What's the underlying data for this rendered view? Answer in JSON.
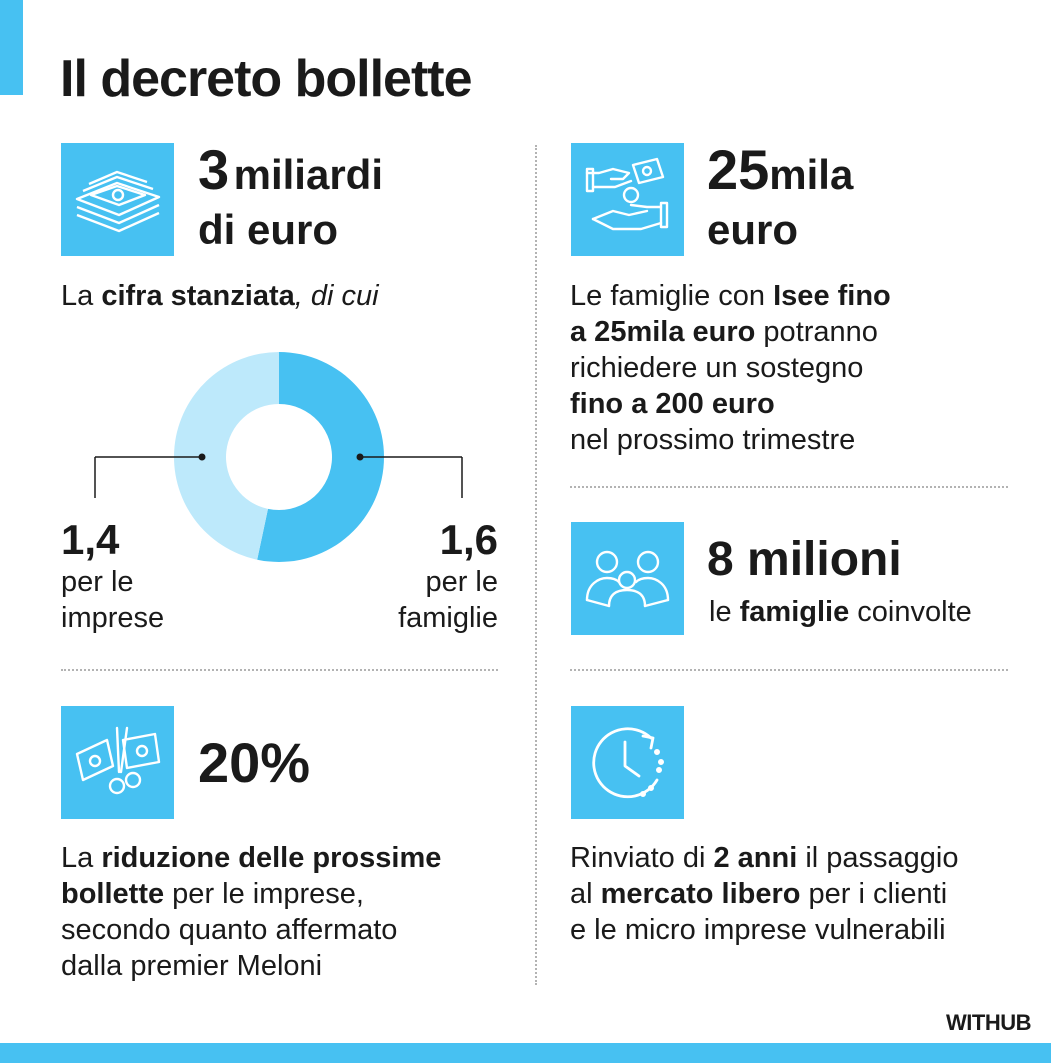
{
  "title": "Il decreto bollette",
  "blocks": {
    "funds": {
      "big_number": "3",
      "big_unit": "miliardi",
      "big_line2": "di euro",
      "desc_prefix": "La ",
      "desc_bold": "cifra stanziata",
      "desc_italic": ", di cui",
      "icon": "banknotes-icon"
    },
    "isee": {
      "big_number": "25",
      "big_unit": "mila",
      "big_line2": "euro",
      "desc_p1": "Le famiglie con ",
      "desc_b1": "Isee fino",
      "desc_b2": "a 25mila euro",
      "desc_p2": " potranno",
      "desc_p3": "richiedere un sostegno",
      "desc_b3": "fino a 200 euro",
      "desc_p4": "nel prossimo trimestre",
      "icon": "hands-money-icon"
    },
    "families": {
      "big_number": "8 milioni",
      "desc_prefix": "le ",
      "desc_bold": "famiglie",
      "desc_suffix": " coinvolte",
      "icon": "family-icon"
    },
    "reduction": {
      "big_number": "20%",
      "desc_p1": "La ",
      "desc_b1": "riduzione delle prossime",
      "desc_b2": "bollette",
      "desc_p2": " per le imprese,",
      "desc_p3": "secondo quanto affermato",
      "desc_p4": "dalla premier Meloni",
      "icon": "scissors-bill-icon"
    },
    "deferral": {
      "desc_p1": "Rinviato di ",
      "desc_b1": "2 anni",
      "desc_p2": " il passaggio",
      "desc_p3": "al ",
      "desc_b2": "mercato libero",
      "desc_p4": " per i clienti",
      "desc_p5": "e le micro imprese vulnerabili",
      "icon": "clock-icon"
    }
  },
  "donut": {
    "left_value": "1,4",
    "left_line1": "per le",
    "left_line2": "imprese",
    "right_value": "1,6",
    "right_line1": "per le",
    "right_line2": "famiglie"
  },
  "chart_data": {
    "type": "pie",
    "title": "",
    "categories": [
      "per le imprese",
      "per le famiglie"
    ],
    "values": [
      1.4,
      1.6
    ],
    "colors": [
      "#bde9fb",
      "#47c1f2"
    ]
  },
  "colors": {
    "accent": "#47c1f2",
    "accent_light": "#bde9fb",
    "text": "#1a1a1a"
  },
  "logo": "WITHUB"
}
